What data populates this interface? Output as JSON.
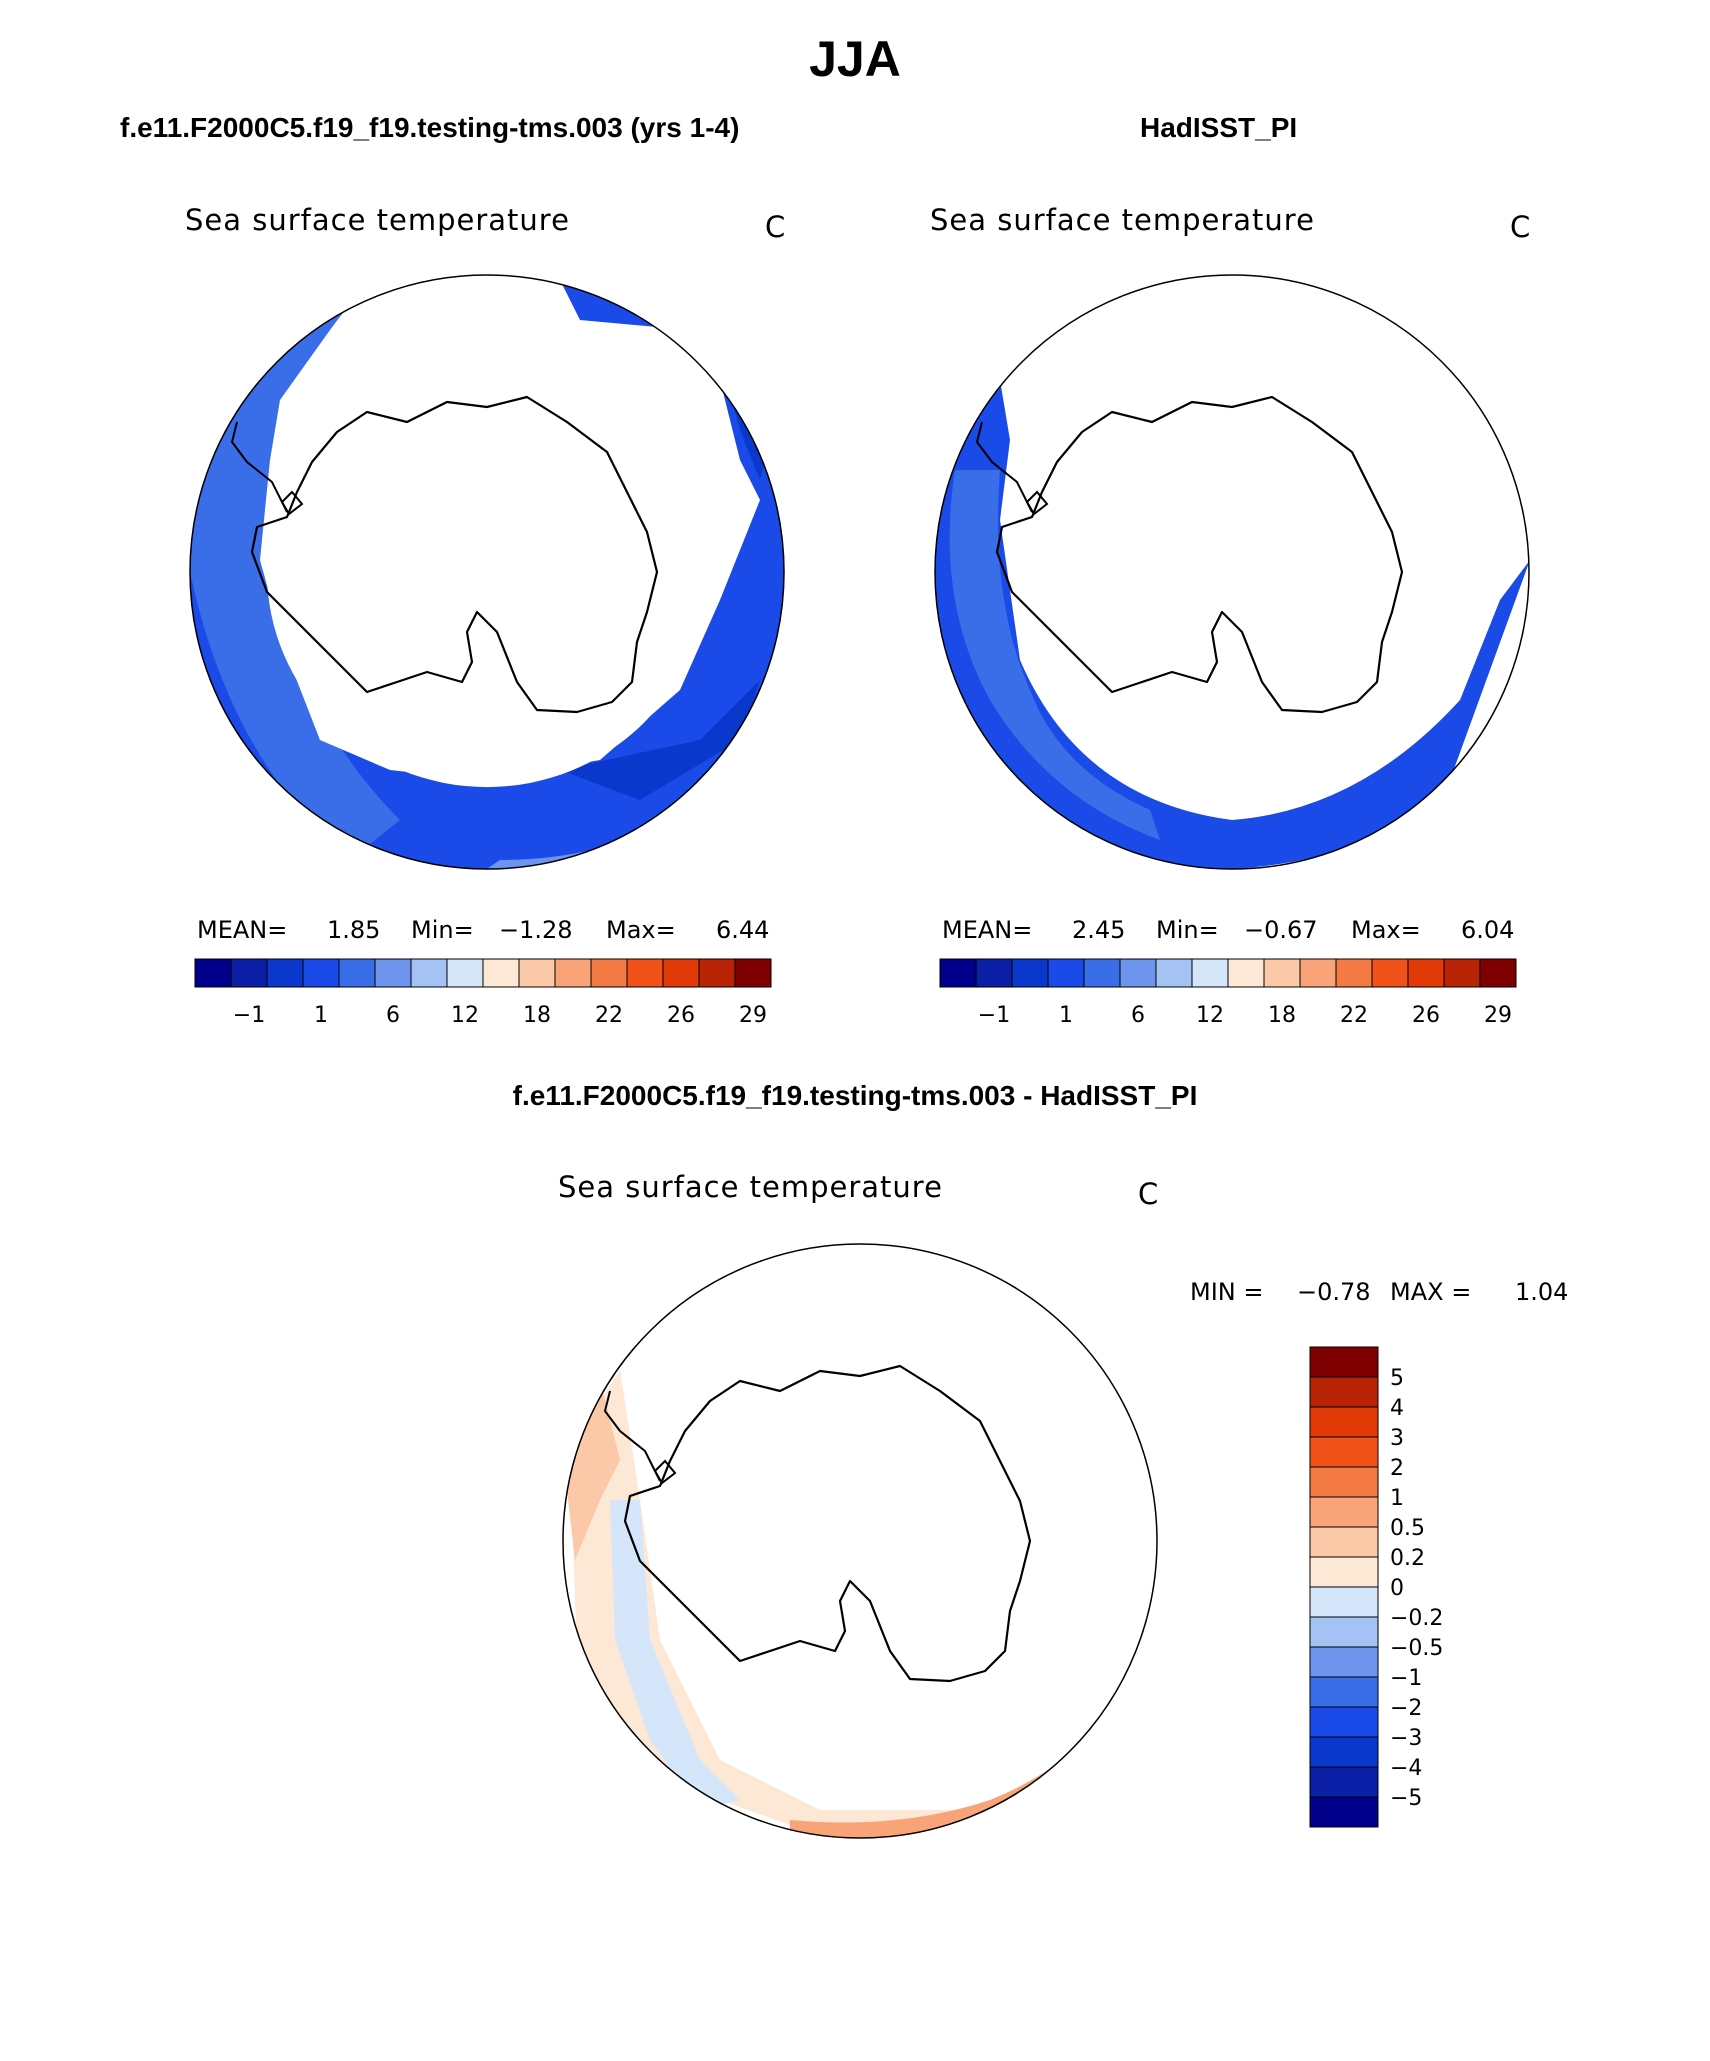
{
  "title": "JJA",
  "panels": [
    {
      "case_title": "f.e11.F2000C5.f19_f19.testing-tms.003 (yrs 1-4)",
      "variable_label": "Sea surface temperature",
      "units": "C",
      "stats": {
        "mean_label": "MEAN=",
        "mean": "1.85",
        "min_label": "Min=",
        "min": "−1.28",
        "max_label": "Max=",
        "max": "6.44"
      }
    },
    {
      "case_title": "HadISST_PI",
      "variable_label": "Sea surface temperature",
      "units": "C",
      "stats": {
        "mean_label": "MEAN=",
        "mean": "2.45",
        "min_label": "Min=",
        "min": "−0.67",
        "max_label": "Max=",
        "max": "6.04"
      }
    },
    {
      "case_title": "f.e11.F2000C5.f19_f19.testing-tms.003 - HadISST_PI",
      "variable_label": "Sea surface temperature",
      "units": "C",
      "stats": {
        "min_label": "MIN =",
        "min": "−0.78",
        "max_label": "MAX =",
        "max": "1.04"
      }
    }
  ],
  "chart_data": [
    {
      "type": "map",
      "projection": "south polar stereographic",
      "variable": "Sea surface temperature",
      "units": "C",
      "colorbar_orientation": "horizontal",
      "colorbar_colors": [
        "#00008b",
        "#0a1fa6",
        "#0a37cc",
        "#1a4ae8",
        "#3a6de8",
        "#6d95ee",
        "#a4c2f4",
        "#d6e6fa",
        "#fde7d5",
        "#fbc8a8",
        "#f8a478",
        "#f47a44",
        "#f1521a",
        "#e23a06",
        "#b82306",
        "#7f0000"
      ],
      "colorbar_tick_labels": [
        "−1",
        "1",
        "6",
        "12",
        "18",
        "22",
        "26",
        "29"
      ]
    },
    {
      "type": "map",
      "projection": "south polar stereographic",
      "variable": "Sea surface temperature",
      "units": "C",
      "colorbar_orientation": "horizontal",
      "colorbar_colors": [
        "#00008b",
        "#0a1fa6",
        "#0a37cc",
        "#1a4ae8",
        "#3a6de8",
        "#6d95ee",
        "#a4c2f4",
        "#d6e6fa",
        "#fde7d5",
        "#fbc8a8",
        "#f8a478",
        "#f47a44",
        "#f1521a",
        "#e23a06",
        "#b82306",
        "#7f0000"
      ],
      "colorbar_tick_labels": [
        "−1",
        "1",
        "6",
        "12",
        "18",
        "22",
        "26",
        "29"
      ]
    },
    {
      "type": "map",
      "projection": "south polar stereographic",
      "variable": "Sea surface temperature difference",
      "units": "C",
      "colorbar_orientation": "vertical",
      "colorbar_colors_top_to_bottom": [
        "#7f0000",
        "#b82306",
        "#e23a06",
        "#f1521a",
        "#f47a44",
        "#f8a478",
        "#fbc8a8",
        "#fde7d5",
        "#d6e6fa",
        "#a4c2f4",
        "#6d95ee",
        "#3a6de8",
        "#1a4ae8",
        "#0a37cc",
        "#0a1fa6",
        "#00008b"
      ],
      "colorbar_tick_labels_top_to_bottom": [
        "5",
        "4",
        "3",
        "2",
        "1",
        "0.5",
        "0.2",
        "0",
        "−0.2",
        "−0.5",
        "−1",
        "−2",
        "−3",
        "−4",
        "−5"
      ]
    }
  ]
}
